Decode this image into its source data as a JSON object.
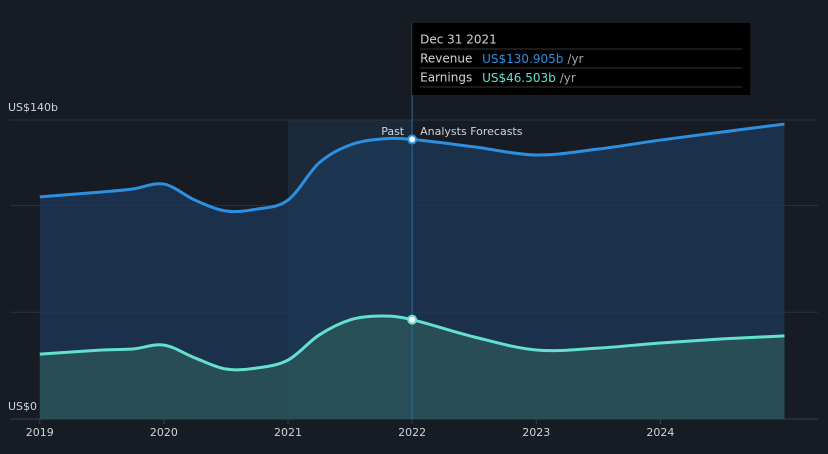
{
  "chart_data": {
    "type": "area",
    "x": [
      2019.0,
      2019.5,
      2019.75,
      2020.0,
      2020.25,
      2020.5,
      2020.75,
      2021.0,
      2021.25,
      2021.5,
      2021.75,
      2022.0,
      2022.5,
      2023.0,
      2023.5,
      2024.0,
      2024.5,
      2025.0
    ],
    "series": [
      {
        "name": "Revenue",
        "color": "#2d8fe0",
        "fill": "#1d3a58",
        "values": [
          104.0,
          106.3,
          107.7,
          110.0,
          102.5,
          97.4,
          98.3,
          102.5,
          119.9,
          128.3,
          131.1,
          130.905,
          127.4,
          123.6,
          126.4,
          130.6,
          134.4,
          138.1
        ]
      },
      {
        "name": "Earnings",
        "color": "#63e0d0",
        "fill": "#2a5258",
        "values": [
          30.4,
          32.3,
          32.8,
          34.6,
          28.6,
          23.4,
          23.9,
          27.6,
          39.3,
          46.4,
          48.2,
          46.503,
          38.4,
          32.3,
          33.2,
          35.6,
          37.5,
          38.9
        ]
      }
    ],
    "xlim": [
      2018.76,
      2025.27
    ],
    "xticks": [
      2019,
      2020,
      2021,
      2022,
      2023,
      2024
    ],
    "ylim": [
      0,
      140
    ],
    "yticks": [
      {
        "value": 0,
        "label": "US$0"
      },
      {
        "value": 50,
        "label": null
      },
      {
        "value": 100,
        "label": null
      },
      {
        "value": 140,
        "label": "US$140b"
      }
    ],
    "grid": true,
    "highlight_range": [
      2021,
      2022
    ],
    "past_label": "Past",
    "forecast_label": "Analysts Forecasts",
    "tooltip": {
      "x": 2022,
      "date": "Dec 31 2021",
      "values": [
        130.905,
        46.503
      ],
      "value_labels": [
        "US$130.905b",
        "US$46.503b"
      ],
      "unit": "/yr"
    }
  }
}
